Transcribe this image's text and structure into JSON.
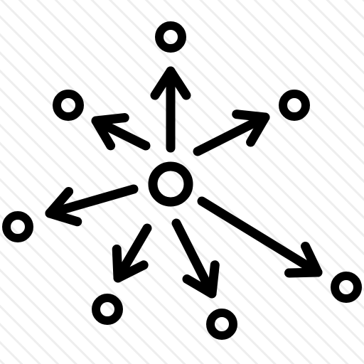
{
  "icon": {
    "name": "distribution-network-icon",
    "background_pattern": "diagonal-hatch",
    "colors": {
      "ink": "#000000",
      "background": "#ffffff",
      "hatch": "#eeeeee"
    },
    "center_node": {
      "name": "center-node"
    },
    "branches": [
      {
        "name": "branch-up"
      },
      {
        "name": "branch-upper-left"
      },
      {
        "name": "branch-upper-right"
      },
      {
        "name": "branch-left"
      },
      {
        "name": "branch-lower-left"
      },
      {
        "name": "branch-down"
      },
      {
        "name": "branch-lower-right"
      }
    ]
  }
}
